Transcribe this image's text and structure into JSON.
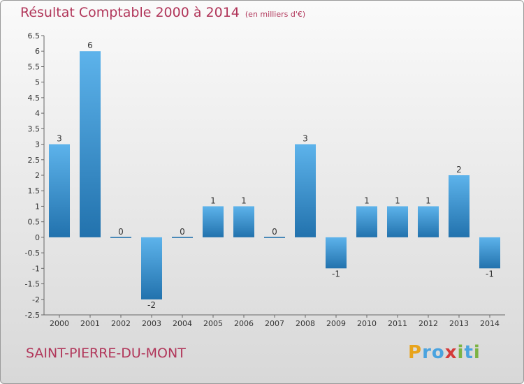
{
  "title": "Résultat Comptable 2000 à 2014",
  "unit": "(en milliers d'€)",
  "commune": "SAINT-PIERRE-DU-MONT",
  "logo": {
    "letters": [
      "P",
      "r",
      "o",
      "x",
      "i",
      "t",
      "i"
    ],
    "colors": [
      "#e8a41c",
      "#4aa3df",
      "#4aa3df",
      "#d43a3a",
      "#7cb342",
      "#4aa3df",
      "#7cb342"
    ]
  },
  "colors": {
    "title": "#b1365a",
    "bar_top": "#5db3eb",
    "bar_bottom": "#2272ad"
  },
  "chart_data": {
    "type": "bar",
    "categories": [
      "2000",
      "2001",
      "2002",
      "2003",
      "2004",
      "2005",
      "2006",
      "2007",
      "2008",
      "2009",
      "2010",
      "2011",
      "2012",
      "2013",
      "2014"
    ],
    "values": [
      3,
      6,
      0,
      -2,
      0,
      1,
      1,
      0,
      3,
      -1,
      1,
      1,
      1,
      2,
      -1
    ],
    "ylim": [
      -2.5,
      6.5
    ],
    "yticks": [
      "6.5",
      "6",
      "5.5",
      "5",
      "4.5",
      "4",
      "3.5",
      "3",
      "2.5",
      "2",
      "1.5",
      "1",
      "0.5",
      "0",
      "-0.5",
      "-1",
      "-1.5",
      "-2",
      "-2.5"
    ],
    "title": "Résultat Comptable 2000 à 2014",
    "xlabel": "",
    "ylabel": "",
    "grid": false
  }
}
